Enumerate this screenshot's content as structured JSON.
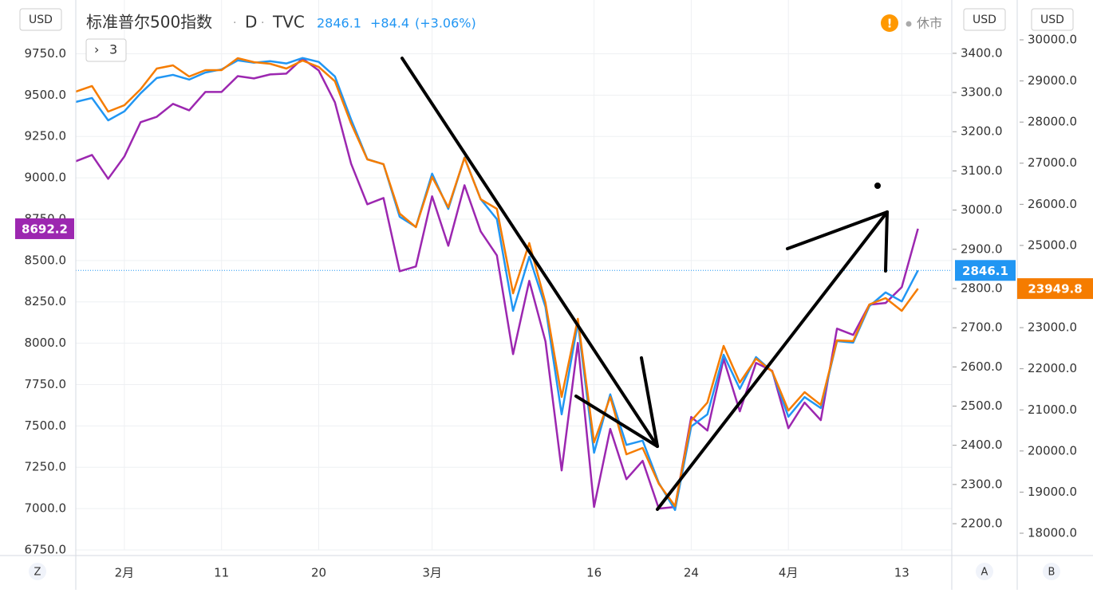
{
  "header": {
    "symbol_title": "标准普尔500指数",
    "interval": "D",
    "exchange": "TVC",
    "change": "+84.4",
    "change_percent": "(+3.06%)",
    "indicator_count": "3",
    "market_status": "休市"
  },
  "axis_letters": [
    "Z",
    "A",
    "B"
  ],
  "currency_labels": [
    "USD",
    "USD",
    "USD"
  ],
  "chart_data": {
    "type": "line",
    "title": "标准普尔500指数",
    "categories": [
      null,
      null,
      null,
      "2月",
      null,
      null,
      null,
      null,
      null,
      "11",
      null,
      null,
      null,
      null,
      null,
      "20",
      null,
      null,
      null,
      null,
      null,
      null,
      "3月",
      null,
      null,
      null,
      null,
      null,
      null,
      null,
      null,
      null,
      "16",
      null,
      null,
      null,
      null,
      null,
      "24",
      null,
      null,
      null,
      null,
      null,
      "4月",
      null,
      null,
      null,
      null,
      null,
      null,
      "13",
      null
    ],
    "ylim": [
      6750,
      10075
    ],
    "y2lim": [
      2133,
      3536
    ],
    "y3lim": [
      17593,
      30969
    ],
    "yticks": [
      {
        "value": 6750,
        "label": "6750.0"
      },
      {
        "value": 7000,
        "label": "7000.0"
      },
      {
        "value": 7250,
        "label": "7250.0"
      },
      {
        "value": 7500,
        "label": "7500.0"
      },
      {
        "value": 7750,
        "label": "7750.0"
      },
      {
        "value": 8000,
        "label": "8000.0"
      },
      {
        "value": 8250,
        "label": "8250.0"
      },
      {
        "value": 8500,
        "label": "8500.0"
      },
      {
        "value": 8750,
        "label": "8750.0"
      },
      {
        "value": 9000,
        "label": "9000.0"
      },
      {
        "value": 9250,
        "label": "9250.0"
      },
      {
        "value": 9500,
        "label": "9500.0"
      },
      {
        "value": 9750,
        "label": "9750.0"
      }
    ],
    "y2ticks": [
      {
        "value": 2200,
        "label": "2200.0"
      },
      {
        "value": 2300,
        "label": "2300.0"
      },
      {
        "value": 2400,
        "label": "2400.0"
      },
      {
        "value": 2500,
        "label": "2500.0"
      },
      {
        "value": 2600,
        "label": "2600.0"
      },
      {
        "value": 2700,
        "label": "2700.0"
      },
      {
        "value": 2800,
        "label": "2800.0"
      },
      {
        "value": 2900,
        "label": "2900.0"
      },
      {
        "value": 3000,
        "label": "3000.0"
      },
      {
        "value": 3100,
        "label": "3100.0"
      },
      {
        "value": 3200,
        "label": "3200.0"
      },
      {
        "value": 3300,
        "label": "3300.0"
      },
      {
        "value": 3400,
        "label": "3400.0"
      }
    ],
    "y3ticks": [
      {
        "value": 18000,
        "label": "18000.0"
      },
      {
        "value": 19000,
        "label": "19000.0"
      },
      {
        "value": 20000,
        "label": "20000.0"
      },
      {
        "value": 21000,
        "label": "21000.0"
      },
      {
        "value": 22000,
        "label": "22000.0"
      },
      {
        "value": 23000,
        "label": "23000.0"
      },
      {
        "value": 24000,
        "label": "24000.0"
      },
      {
        "value": 25000,
        "label": "25000.0"
      },
      {
        "value": 26000,
        "label": "26000.0"
      },
      {
        "value": 27000,
        "label": "27000.0"
      },
      {
        "value": 28000,
        "label": "28000.0"
      },
      {
        "value": 29000,
        "label": "29000.0"
      },
      {
        "value": 30000,
        "label": "30000.0"
      }
    ],
    "grid": true,
    "series": [
      {
        "color": "#9c27b0",
        "axis": "y",
        "values": [
          9100,
          9138,
          8994,
          9129,
          9336,
          9369,
          9447,
          9408,
          9519,
          9519,
          9615,
          9601,
          9625,
          9630,
          9721,
          9649,
          9456,
          9085,
          8840,
          8878,
          8435,
          8464,
          8888,
          8589,
          8955,
          8676,
          8531,
          7934,
          8377,
          8011,
          7231,
          8002,
          7010,
          7482,
          7178,
          7289,
          7000,
          7010,
          7554,
          7472,
          7905,
          7588,
          7881,
          7833,
          7486,
          7641,
          7535,
          8088,
          8050,
          8233,
          8243,
          8339,
          8692.2
        ]
      },
      {
        "color": "#2196f3",
        "axis": "y2",
        "values": [
          3276,
          3286,
          3229,
          3252,
          3298,
          3337,
          3345,
          3333,
          3351,
          3359,
          3382,
          3376,
          3380,
          3374,
          3388,
          3378,
          3341,
          3231,
          3130,
          3117,
          2983,
          2957,
          3093,
          3003,
          3134,
          3028,
          2977,
          2743,
          2881,
          2753,
          2479,
          2713,
          2381,
          2530,
          2401,
          2412,
          2304,
          2235,
          2448,
          2479,
          2631,
          2544,
          2625,
          2588,
          2473,
          2523,
          2495,
          2666,
          2662,
          2755,
          2790,
          2767,
          2846.1
        ]
      },
      {
        "color": "#f57c00",
        "axis": "y3",
        "values": [
          28740,
          28876,
          28255,
          28410,
          28798,
          29302,
          29380,
          29108,
          29263,
          29263,
          29554,
          29457,
          29418,
          29302,
          29496,
          29341,
          28992,
          27964,
          27092,
          26976,
          25774,
          25444,
          26666,
          25929,
          27131,
          26123,
          25890,
          23835,
          25057,
          23603,
          21315,
          23215,
          20210,
          21315,
          19919,
          20074,
          19202,
          18659,
          20733,
          21179,
          22556,
          21664,
          22245,
          21935,
          20985,
          21431,
          21121,
          22691,
          22672,
          23564,
          23719,
          23409,
          23949.8
        ]
      }
    ]
  }
}
